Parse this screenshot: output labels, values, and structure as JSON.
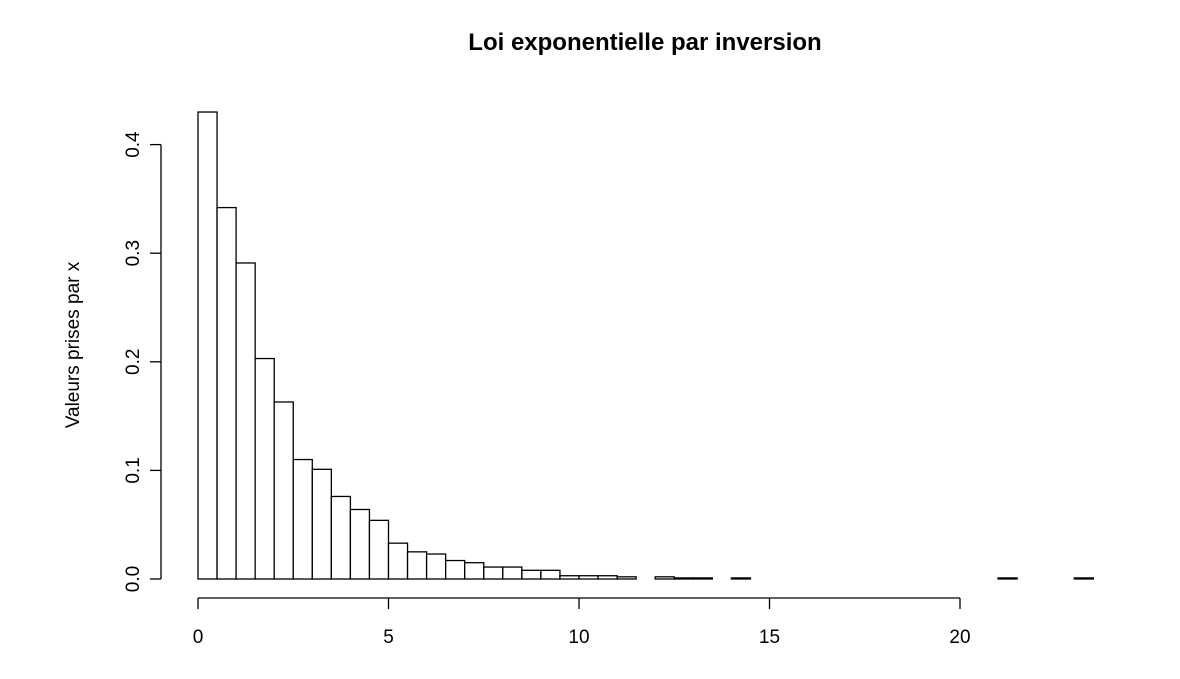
{
  "chart_data": {
    "type": "bar",
    "title": "Loi exponentielle par inversion",
    "xlabel": "",
    "ylabel": "Valeurs prises par x",
    "bin_width": 0.5,
    "x_start": 0,
    "x_ticks": [
      0,
      5,
      10,
      15,
      20
    ],
    "x_tick_labels": [
      "0",
      "5",
      "10",
      "15",
      "20"
    ],
    "xlim": [
      0,
      23.5
    ],
    "y_ticks": [
      0.0,
      0.1,
      0.2,
      0.3,
      0.4
    ],
    "y_tick_labels": [
      "0.0",
      "0.1",
      "0.2",
      "0.3",
      "0.4"
    ],
    "ylim": [
      0,
      0.43
    ],
    "values": [
      0.43,
      0.342,
      0.291,
      0.203,
      0.163,
      0.11,
      0.101,
      0.076,
      0.064,
      0.054,
      0.033,
      0.025,
      0.023,
      0.017,
      0.015,
      0.011,
      0.011,
      0.008,
      0.008,
      0.003,
      0.003,
      0.003,
      0.002,
      0.0,
      0.002,
      0.001,
      0.001,
      0.0,
      0.001,
      0.0,
      0.0,
      0.0,
      0.0,
      0.0,
      0.0,
      0.0,
      0.0,
      0.0,
      0.0,
      0.0,
      0.0,
      0.0,
      0.001,
      0.0,
      0.0,
      0.0,
      0.001
    ],
    "grid": false,
    "legend": "none"
  }
}
